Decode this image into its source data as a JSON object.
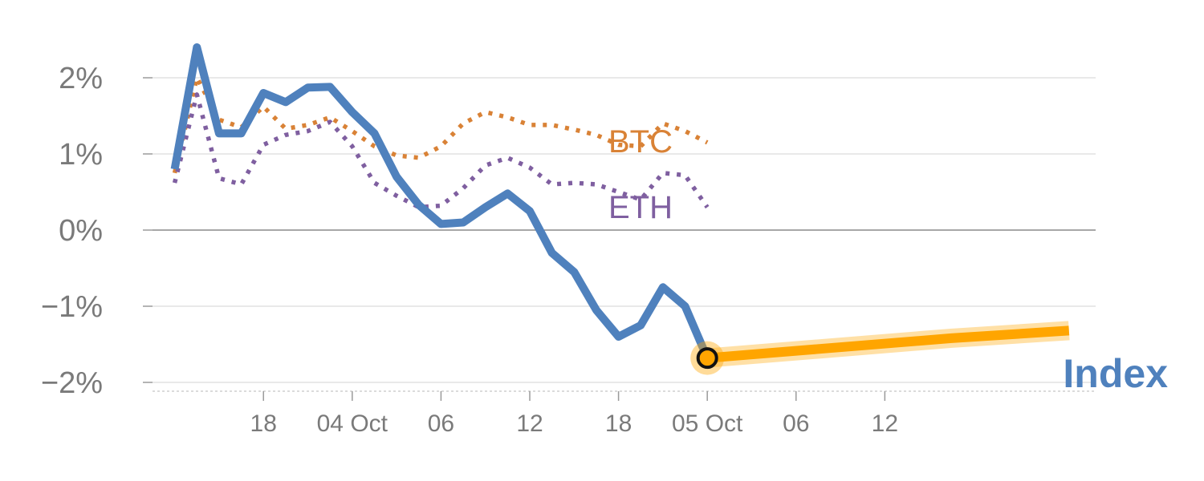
{
  "chart_data": {
    "type": "line",
    "title": "",
    "xlabel": "",
    "ylabel": "",
    "x_ticks": [
      "18",
      "04 Oct",
      "06",
      "12",
      "18",
      "05 Oct",
      "06",
      "12"
    ],
    "y_ticks": [
      "−2%",
      "−1%",
      "0%",
      "1%",
      "2%"
    ],
    "y_tick_values": [
      -2,
      -1,
      0,
      1,
      2
    ],
    "ylim": [
      -2.05,
      2.6
    ],
    "xlim": [
      -1,
      41.5
    ],
    "grid": true,
    "colors": {
      "Index": "#4f81bd",
      "BTC": "#d98236",
      "ETH": "#7f5fa0",
      "forecast": "#ffa500",
      "zero_line": "#8a8a8a",
      "grid": "#e2e2e2",
      "ticks": "#7a7a7a"
    },
    "series": [
      {
        "name": "Index",
        "style": "solid",
        "x": [
          0,
          1,
          2,
          3,
          4,
          5,
          6,
          7,
          8,
          9,
          10,
          11,
          12,
          13,
          14,
          15,
          16,
          17,
          18,
          19,
          20,
          21,
          22,
          23,
          24
        ],
        "values": [
          0.8,
          2.4,
          1.27,
          1.27,
          1.8,
          1.68,
          1.87,
          1.88,
          1.55,
          1.27,
          0.7,
          0.33,
          0.08,
          0.1,
          0.3,
          0.48,
          0.25,
          -0.3,
          -0.55,
          -1.05,
          -1.4,
          -1.25,
          -0.75,
          -1.0,
          -1.68
        ]
      },
      {
        "name": "BTC",
        "style": "dotted",
        "x": [
          0,
          1,
          2,
          3,
          4,
          5,
          6,
          7,
          8,
          9,
          10,
          11,
          12,
          13,
          14,
          15,
          16,
          17,
          18,
          19,
          20,
          21,
          22,
          23,
          24
        ],
        "values": [
          0.75,
          2.0,
          1.45,
          1.35,
          1.62,
          1.33,
          1.38,
          1.48,
          1.3,
          1.1,
          0.98,
          0.95,
          1.1,
          1.4,
          1.55,
          1.48,
          1.38,
          1.38,
          1.32,
          1.25,
          1.12,
          1.1,
          1.4,
          1.3,
          1.15
        ]
      },
      {
        "name": "ETH",
        "style": "dotted",
        "x": [
          0,
          1,
          2,
          3,
          4,
          5,
          6,
          7,
          8,
          9,
          10,
          11,
          12,
          13,
          14,
          15,
          16,
          17,
          18,
          19,
          20,
          21,
          22,
          23,
          24
        ],
        "values": [
          0.62,
          1.78,
          0.68,
          0.6,
          1.12,
          1.25,
          1.3,
          1.42,
          1.1,
          0.62,
          0.45,
          0.3,
          0.32,
          0.55,
          0.85,
          0.95,
          0.82,
          0.6,
          0.62,
          0.6,
          0.5,
          0.4,
          0.75,
          0.72,
          0.3
        ]
      },
      {
        "name": "forecast",
        "style": "band",
        "x": [
          24,
          35,
          40.3
        ],
        "values": [
          -1.68,
          -1.42,
          -1.32
        ]
      }
    ],
    "marker": {
      "x": 24,
      "value": -1.68
    },
    "labels": {
      "BTC": "BTC",
      "ETH": "ETH",
      "Index": "Index"
    }
  }
}
